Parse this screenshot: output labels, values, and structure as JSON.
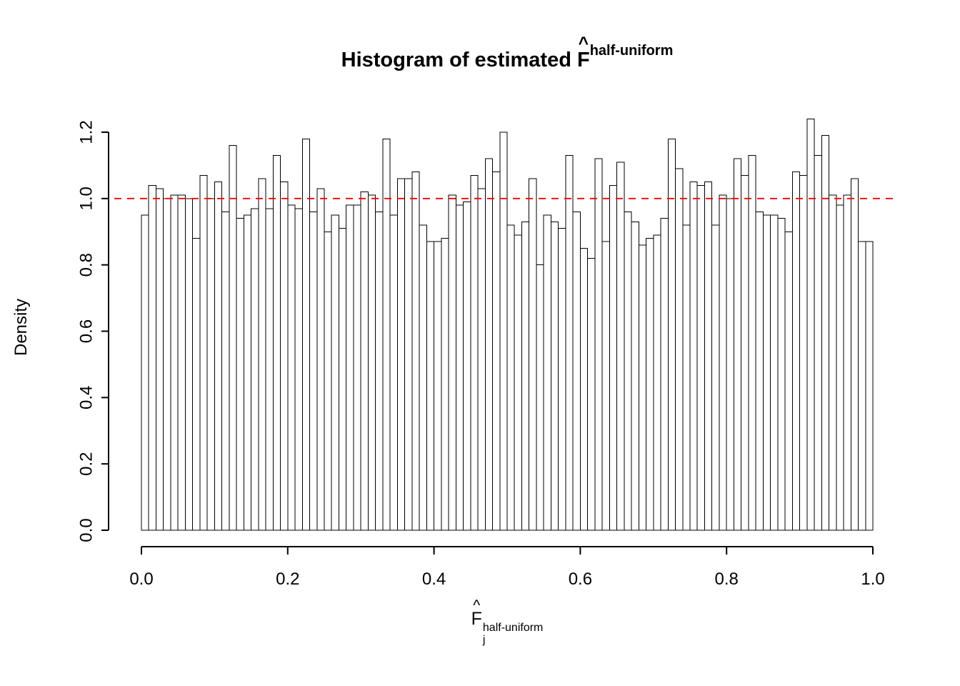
{
  "title": {
    "prefix": "Histogram of estimated ",
    "f": "F",
    "hat": "^",
    "sup": "half-uniform"
  },
  "ylabel": "Density",
  "xlabel": {
    "f": "F",
    "hat": "^",
    "sub": "j",
    "sup": "half-uniform"
  },
  "axes": {
    "x_ticks": [
      "0.0",
      "0.2",
      "0.4",
      "0.6",
      "0.8",
      "1.0"
    ],
    "y_ticks": [
      "0.0",
      "0.2",
      "0.4",
      "0.6",
      "0.8",
      "1.0",
      "1.2"
    ]
  },
  "colors": {
    "ref_line": "#FF0000",
    "bar_fill": "#FFFFFF",
    "bar_stroke": "#000000",
    "axis": "#000000"
  },
  "chart_data": {
    "type": "bar",
    "subtype": "histogram",
    "title": "Histogram of estimated F^half-uniform",
    "xlabel": "F_j^half-uniform",
    "ylabel": "Density",
    "bin_start": 0.0,
    "bin_width": 0.01,
    "xlim": [
      0.0,
      1.0
    ],
    "ylim": [
      0.0,
      1.24
    ],
    "grid": false,
    "legend": "none",
    "ref_line": {
      "y": 1.0,
      "style": "dashed",
      "color": "#FF0000"
    },
    "values": [
      0.95,
      1.04,
      1.03,
      1.0,
      1.01,
      1.01,
      1.0,
      0.88,
      1.07,
      1.0,
      1.05,
      0.96,
      1.16,
      0.94,
      0.95,
      0.97,
      1.06,
      0.97,
      1.13,
      1.05,
      0.98,
      0.97,
      1.18,
      0.96,
      1.03,
      0.9,
      0.95,
      0.91,
      0.98,
      0.98,
      1.02,
      1.01,
      0.96,
      1.18,
      0.95,
      1.06,
      1.06,
      1.08,
      0.92,
      0.87,
      0.87,
      0.88,
      1.01,
      0.98,
      0.99,
      1.07,
      1.03,
      1.12,
      1.08,
      1.2,
      0.92,
      0.89,
      0.93,
      1.06,
      0.8,
      0.95,
      0.93,
      0.91,
      1.13,
      0.96,
      0.85,
      0.82,
      1.12,
      0.87,
      1.04,
      1.11,
      0.96,
      0.93,
      0.86,
      0.88,
      0.89,
      0.94,
      1.18,
      1.09,
      0.92,
      1.05,
      1.04,
      1.05,
      0.92,
      1.01,
      1.0,
      1.12,
      1.07,
      1.13,
      0.96,
      0.95,
      0.95,
      0.94,
      0.9,
      1.08,
      1.07,
      1.24,
      1.13,
      1.19,
      1.01,
      0.98,
      1.01,
      1.06,
      0.87,
      0.87
    ]
  }
}
